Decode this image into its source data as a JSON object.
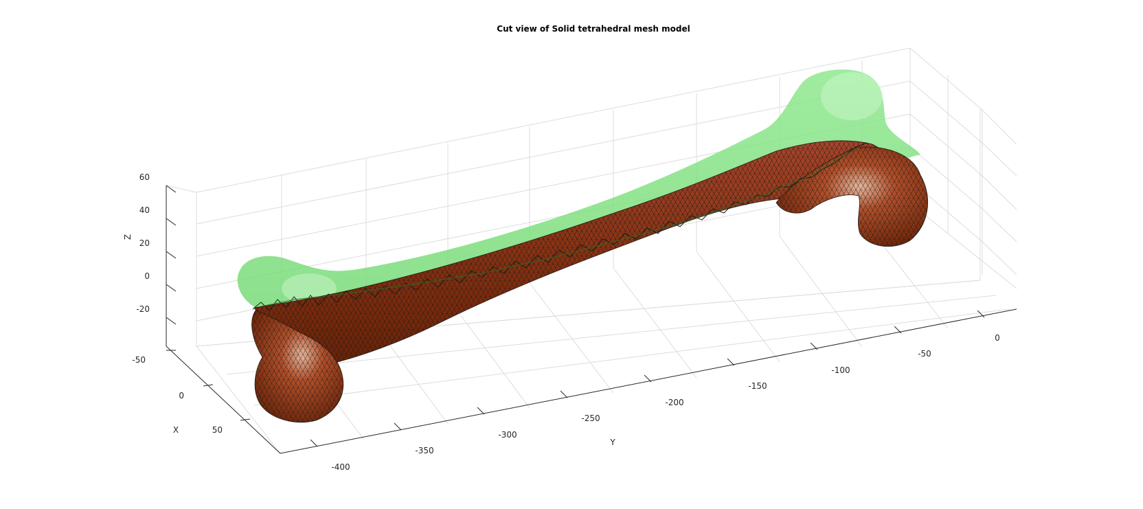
{
  "figure": {
    "title": "Cut view of Solid tetrahedral mesh model",
    "x_axis": {
      "label": "X",
      "ticks": [
        "-50",
        "0",
        "50"
      ]
    },
    "y_axis": {
      "label": "Y",
      "ticks": [
        "-400",
        "-350",
        "-300",
        "-250",
        "-200",
        "-150",
        "-100",
        "-50",
        "0"
      ]
    },
    "z_axis": {
      "label": "Z",
      "ticks": [
        "60",
        "40",
        "20",
        "0",
        "-20"
      ]
    },
    "colors": {
      "transparent_surface": "#7de07d",
      "solid_mesh": "#8c3414",
      "mesh_edges": "#1a1a1a",
      "background": "#ffffff"
    }
  }
}
